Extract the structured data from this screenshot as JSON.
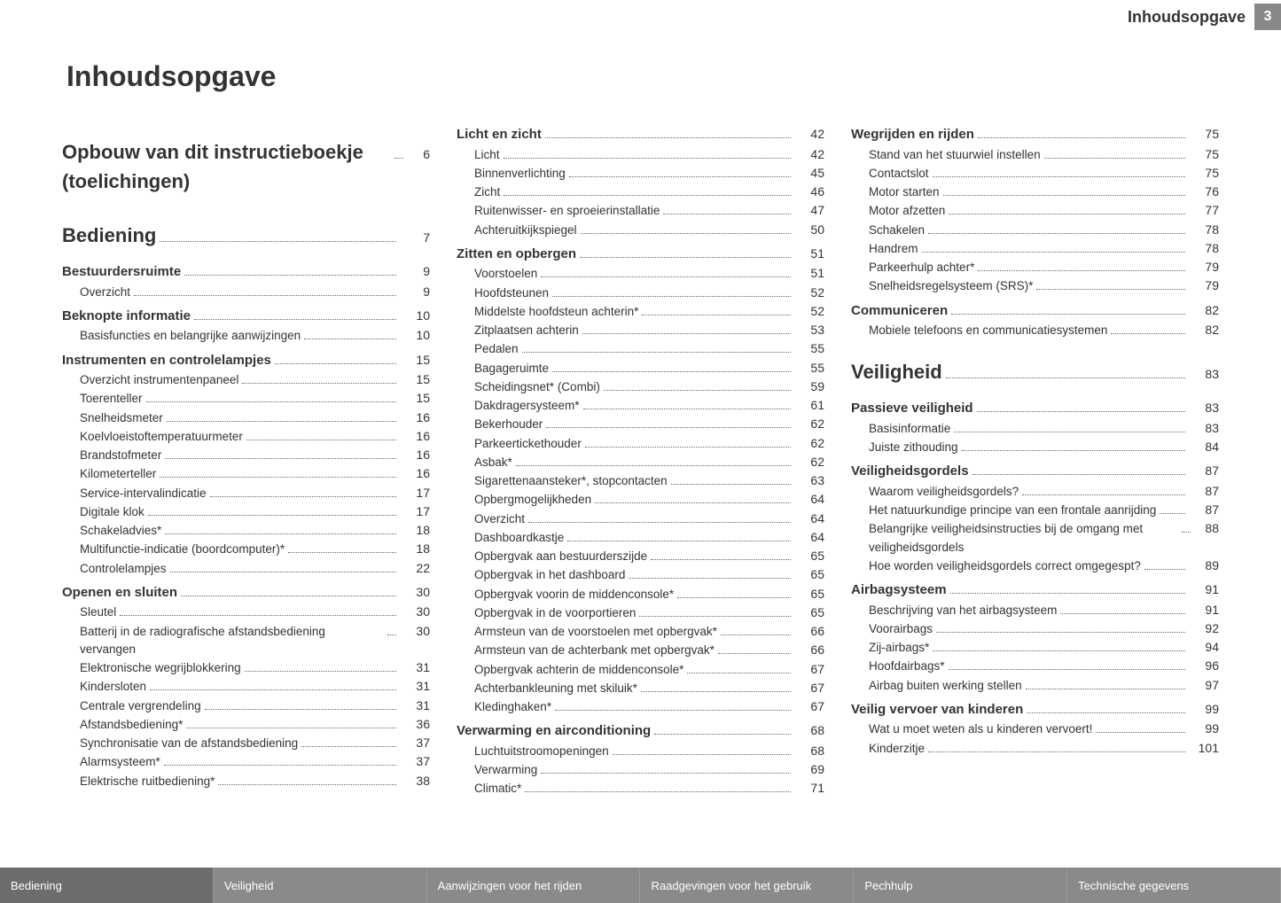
{
  "header": {
    "title": "Inhoudsopgave",
    "page": "3"
  },
  "main_title": "Inhoudsopgave",
  "columns": [
    [
      {
        "type": "heading",
        "label": "Opbouw van dit instructieboekje (toelichingen)",
        "page": "6"
      },
      {
        "type": "heading",
        "label": "Bediening",
        "page": "7"
      },
      {
        "type": "section",
        "label": "Bestuurdersruimte",
        "page": "9"
      },
      {
        "type": "sub",
        "label": "Overzicht",
        "page": "9"
      },
      {
        "type": "section",
        "label": "Beknopte informatie",
        "page": "10"
      },
      {
        "type": "sub",
        "label": "Basisfuncties en belangrijke aanwijzingen",
        "page": "10"
      },
      {
        "type": "section",
        "label": "Instrumenten en controlelampjes",
        "page": "15"
      },
      {
        "type": "sub",
        "label": "Overzicht instrumentenpaneel",
        "page": "15"
      },
      {
        "type": "sub",
        "label": "Toerenteller",
        "page": "15"
      },
      {
        "type": "sub",
        "label": "Snelheidsmeter",
        "page": "16"
      },
      {
        "type": "sub",
        "label": "Koelvloeistoftemperatuurmeter",
        "page": "16"
      },
      {
        "type": "sub",
        "label": "Brandstofmeter",
        "page": "16"
      },
      {
        "type": "sub",
        "label": "Kilometerteller",
        "page": "16"
      },
      {
        "type": "sub",
        "label": "Service-intervalindicatie",
        "page": "17"
      },
      {
        "type": "sub",
        "label": "Digitale klok",
        "page": "17"
      },
      {
        "type": "sub",
        "label": "Schakeladvies*",
        "page": "18"
      },
      {
        "type": "sub",
        "label": "Multifunctie-indicatie (boordcomputer)*",
        "page": "18"
      },
      {
        "type": "sub",
        "label": "Controlelampjes",
        "page": "22"
      },
      {
        "type": "section",
        "label": "Openen en sluiten",
        "page": "30"
      },
      {
        "type": "sub",
        "label": "Sleutel",
        "page": "30"
      },
      {
        "type": "sub",
        "label": "Batterij in de radiografische afstandsbediening vervangen",
        "page": "30"
      },
      {
        "type": "sub",
        "label": "Elektronische wegrijblokkering",
        "page": "31"
      },
      {
        "type": "sub",
        "label": "Kindersloten",
        "page": "31"
      },
      {
        "type": "sub",
        "label": "Centrale vergrendeling",
        "page": "31"
      },
      {
        "type": "sub",
        "label": "Afstandsbediening*",
        "page": "36"
      },
      {
        "type": "sub",
        "label": "Synchronisatie van de afstandsbediening",
        "page": "37"
      },
      {
        "type": "sub",
        "label": "Alarmsysteem*",
        "page": "37"
      },
      {
        "type": "sub",
        "label": "Elektrische ruitbediening*",
        "page": "38"
      }
    ],
    [
      {
        "type": "section",
        "label": "Licht en zicht",
        "page": "42"
      },
      {
        "type": "sub",
        "label": "Licht",
        "page": "42"
      },
      {
        "type": "sub",
        "label": "Binnenverlichting",
        "page": "45"
      },
      {
        "type": "sub",
        "label": "Zicht",
        "page": "46"
      },
      {
        "type": "sub",
        "label": "Ruitenwisser- en sproeierinstallatie",
        "page": "47"
      },
      {
        "type": "sub",
        "label": "Achteruitkijkspiegel",
        "page": "50"
      },
      {
        "type": "section",
        "label": "Zitten en opbergen",
        "page": "51"
      },
      {
        "type": "sub",
        "label": "Voorstoelen",
        "page": "51"
      },
      {
        "type": "sub",
        "label": "Hoofdsteunen",
        "page": "52"
      },
      {
        "type": "sub",
        "label": "Middelste hoofdsteun achterin*",
        "page": "52"
      },
      {
        "type": "sub",
        "label": "Zitplaatsen achterin",
        "page": "53"
      },
      {
        "type": "sub",
        "label": "Pedalen",
        "page": "55"
      },
      {
        "type": "sub",
        "label": "Bagageruimte",
        "page": "55"
      },
      {
        "type": "sub",
        "label": "Scheidingsnet* (Combi)",
        "page": "59"
      },
      {
        "type": "sub",
        "label": "Dakdragersysteem*",
        "page": "61"
      },
      {
        "type": "sub",
        "label": "Bekerhouder",
        "page": "62"
      },
      {
        "type": "sub",
        "label": "Parkeertickethouder",
        "page": "62"
      },
      {
        "type": "sub",
        "label": "Asbak*",
        "page": "62"
      },
      {
        "type": "sub",
        "label": "Sigarettenaansteker*, stopcontacten",
        "page": "63"
      },
      {
        "type": "sub",
        "label": "Opbergmogelijkheden",
        "page": "64"
      },
      {
        "type": "sub",
        "label": "Overzicht",
        "page": "64"
      },
      {
        "type": "sub",
        "label": "Dashboardkastje",
        "page": "64"
      },
      {
        "type": "sub",
        "label": "Opbergvak aan bestuurderszijde",
        "page": "65"
      },
      {
        "type": "sub",
        "label": "Opbergvak in het dashboard",
        "page": "65"
      },
      {
        "type": "sub",
        "label": "Opbergvak voorin de middenconsole*",
        "page": "65"
      },
      {
        "type": "sub",
        "label": "Opbergvak in de voorportieren",
        "page": "65"
      },
      {
        "type": "sub",
        "label": "Armsteun van de voorstoelen met opbergvak*",
        "page": "66"
      },
      {
        "type": "sub",
        "label": "Armsteun van de achterbank met opbergvak*",
        "page": "66"
      },
      {
        "type": "sub",
        "label": "Opbergvak achterin de middenconsole*",
        "page": "67"
      },
      {
        "type": "sub",
        "label": "Achterbankleuning met skiluik*",
        "page": "67"
      },
      {
        "type": "sub",
        "label": "Kledinghaken*",
        "page": "67"
      },
      {
        "type": "section",
        "label": "Verwarming en airconditioning",
        "page": "68"
      },
      {
        "type": "sub",
        "label": "Luchtuitstroomopeningen",
        "page": "68"
      },
      {
        "type": "sub",
        "label": "Verwarming",
        "page": "69"
      },
      {
        "type": "sub",
        "label": "Climatic*",
        "page": "71"
      }
    ],
    [
      {
        "type": "section",
        "label": "Wegrijden en rijden",
        "page": "75"
      },
      {
        "type": "sub",
        "label": "Stand van het stuurwiel instellen",
        "page": "75"
      },
      {
        "type": "sub",
        "label": "Contactslot",
        "page": "75"
      },
      {
        "type": "sub",
        "label": "Motor starten",
        "page": "76"
      },
      {
        "type": "sub",
        "label": "Motor afzetten",
        "page": "77"
      },
      {
        "type": "sub",
        "label": "Schakelen",
        "page": "78"
      },
      {
        "type": "sub",
        "label": "Handrem",
        "page": "78"
      },
      {
        "type": "sub",
        "label": "Parkeerhulp achter*",
        "page": "79"
      },
      {
        "type": "sub",
        "label": "Snelheidsregelsysteem (SRS)*",
        "page": "79"
      },
      {
        "type": "section",
        "label": "Communiceren",
        "page": "82"
      },
      {
        "type": "sub",
        "label": "Mobiele telefoons en communicatiesystemen",
        "page": "82"
      },
      {
        "type": "heading",
        "label": "Veiligheid",
        "page": "83"
      },
      {
        "type": "section",
        "label": "Passieve veiligheid",
        "page": "83"
      },
      {
        "type": "sub",
        "label": "Basisinformatie",
        "page": "83"
      },
      {
        "type": "sub",
        "label": "Juiste zithouding",
        "page": "84"
      },
      {
        "type": "section",
        "label": "Veiligheidsgordels",
        "page": "87"
      },
      {
        "type": "sub",
        "label": "Waarom veiligheidsgordels?",
        "page": "87"
      },
      {
        "type": "sub",
        "label": "Het natuurkundige principe van een frontale aanrijding",
        "page": "87"
      },
      {
        "type": "sub",
        "label": "Belangrijke veiligheidsinstructies bij de omgang met veiligheidsgordels",
        "page": "88"
      },
      {
        "type": "sub",
        "label": "Hoe worden veiligheidsgordels correct omgegespt?",
        "page": "89"
      },
      {
        "type": "section",
        "label": "Airbagsysteem",
        "page": "91"
      },
      {
        "type": "sub",
        "label": "Beschrijving van het airbagsysteem",
        "page": "91"
      },
      {
        "type": "sub",
        "label": "Voorairbags",
        "page": "92"
      },
      {
        "type": "sub",
        "label": "Zij-airbags*",
        "page": "94"
      },
      {
        "type": "sub",
        "label": "Hoofdairbags*",
        "page": "96"
      },
      {
        "type": "sub",
        "label": "Airbag buiten werking stellen",
        "page": "97"
      },
      {
        "type": "section",
        "label": "Veilig vervoer van kinderen",
        "page": "99"
      },
      {
        "type": "sub",
        "label": "Wat u moet weten als u kinderen vervoert!",
        "page": "99"
      },
      {
        "type": "sub",
        "label": "Kinderzitje",
        "page": "101"
      }
    ]
  ],
  "footer": [
    "Bediening",
    "Veiligheid",
    "Aanwijzingen voor het rijden",
    "Raadgevingen voor het gebruik",
    "Pechhulp",
    "Technische gegevens"
  ]
}
